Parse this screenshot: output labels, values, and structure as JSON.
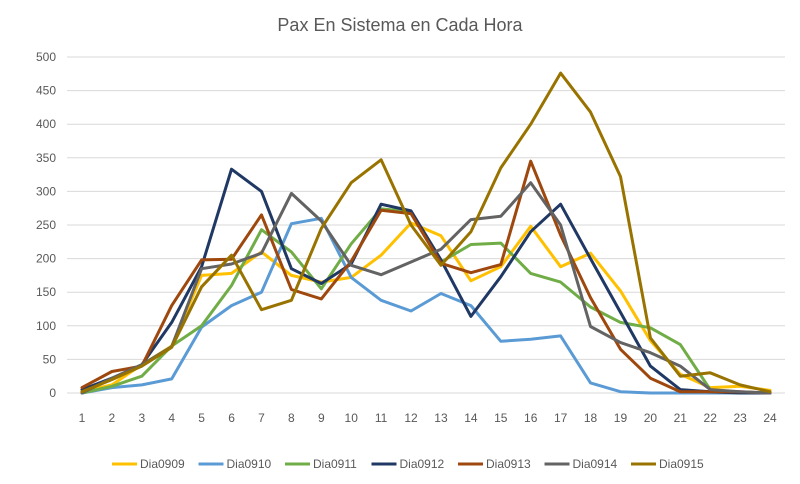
{
  "chart_data": {
    "type": "line",
    "title": "Pax En Sistema en Cada Hora",
    "xlabel": "",
    "ylabel": "",
    "x": [
      1,
      2,
      3,
      4,
      5,
      6,
      7,
      8,
      9,
      10,
      11,
      12,
      13,
      14,
      15,
      16,
      17,
      18,
      19,
      20,
      21,
      22,
      23,
      24
    ],
    "ylim": [
      0,
      500
    ],
    "yticks": [
      0,
      50,
      100,
      150,
      200,
      250,
      300,
      350,
      400,
      450,
      500
    ],
    "grid": true,
    "legend_position": "bottom",
    "series": [
      {
        "name": "Dia0909",
        "color": "#FFC000",
        "values": [
          2,
          12,
          42,
          70,
          175,
          178,
          210,
          175,
          165,
          172,
          205,
          253,
          234,
          167,
          188,
          248,
          188,
          208,
          152,
          78,
          28,
          8,
          10,
          4
        ]
      },
      {
        "name": "Dia0910",
        "color": "#5B9BD5",
        "values": [
          0,
          8,
          12,
          21,
          98,
          130,
          150,
          252,
          260,
          172,
          138,
          122,
          148,
          130,
          77,
          80,
          85,
          15,
          2,
          0,
          0,
          0,
          0,
          0
        ]
      },
      {
        "name": "Dia0911",
        "color": "#70AD47",
        "values": [
          0,
          10,
          25,
          70,
          100,
          160,
          243,
          210,
          155,
          222,
          274,
          270,
          195,
          221,
          223,
          178,
          165,
          128,
          105,
          97,
          72,
          5,
          0,
          0
        ]
      },
      {
        "name": "Dia0912",
        "color": "#203864",
        "values": [
          5,
          22,
          42,
          105,
          188,
          333,
          300,
          185,
          163,
          192,
          281,
          271,
          198,
          114,
          173,
          240,
          281,
          200,
          120,
          40,
          5,
          2,
          0,
          0
        ]
      },
      {
        "name": "Dia0913",
        "color": "#9E480E",
        "values": [
          8,
          32,
          40,
          130,
          198,
          199,
          265,
          154,
          140,
          196,
          272,
          267,
          193,
          179,
          191,
          345,
          235,
          142,
          65,
          22,
          2,
          2,
          2,
          0
        ]
      },
      {
        "name": "Dia0914",
        "color": "#636363",
        "values": [
          0,
          22,
          42,
          69,
          185,
          192,
          208,
          297,
          256,
          190,
          176,
          195,
          214,
          258,
          263,
          313,
          250,
          99,
          75,
          60,
          40,
          5,
          2,
          0
        ]
      },
      {
        "name": "Dia0915",
        "color": "#997300",
        "values": [
          2,
          20,
          40,
          68,
          158,
          205,
          124,
          138,
          245,
          313,
          347,
          250,
          190,
          240,
          335,
          400,
          476,
          418,
          322,
          82,
          25,
          30,
          12,
          2
        ]
      }
    ]
  }
}
